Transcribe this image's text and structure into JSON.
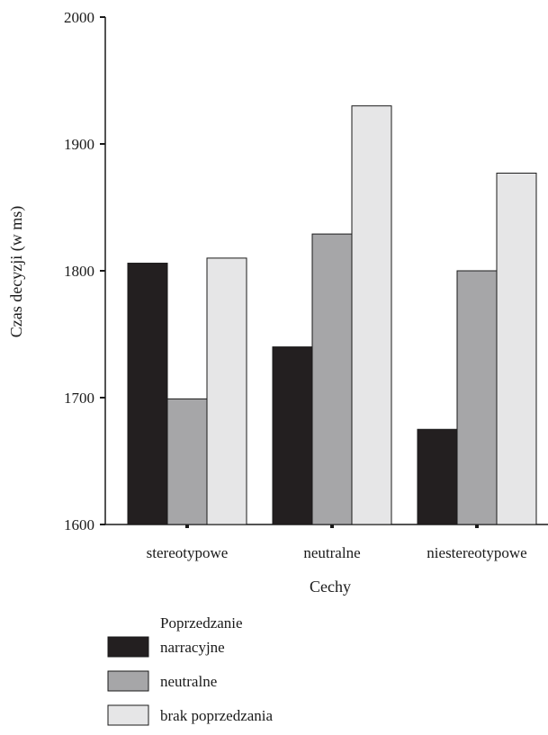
{
  "chart_data": {
    "type": "bar",
    "ylabel": "Czas decyzji (w ms)",
    "xlabel": "Cechy",
    "categories": [
      "stereotypowe",
      "neutralne",
      "niestereotypowe"
    ],
    "ylim": [
      1600,
      2000
    ],
    "yticks": [
      "1600",
      "1700",
      "1800",
      "1900",
      "2000"
    ],
    "series": [
      {
        "name": "narracyjne",
        "color": "#231f20",
        "values": [
          1806,
          1740,
          1675
        ]
      },
      {
        "name": "neutralne",
        "color": "#a6a6a8",
        "values": [
          1699,
          1829,
          1800
        ]
      },
      {
        "name": "brak poprzedzania",
        "color": "#e6e6e7",
        "values": [
          1810,
          1930,
          1877
        ]
      }
    ],
    "legend": {
      "title": "Poprzedzanie",
      "placement": "bottom-left"
    },
    "grid": false
  }
}
